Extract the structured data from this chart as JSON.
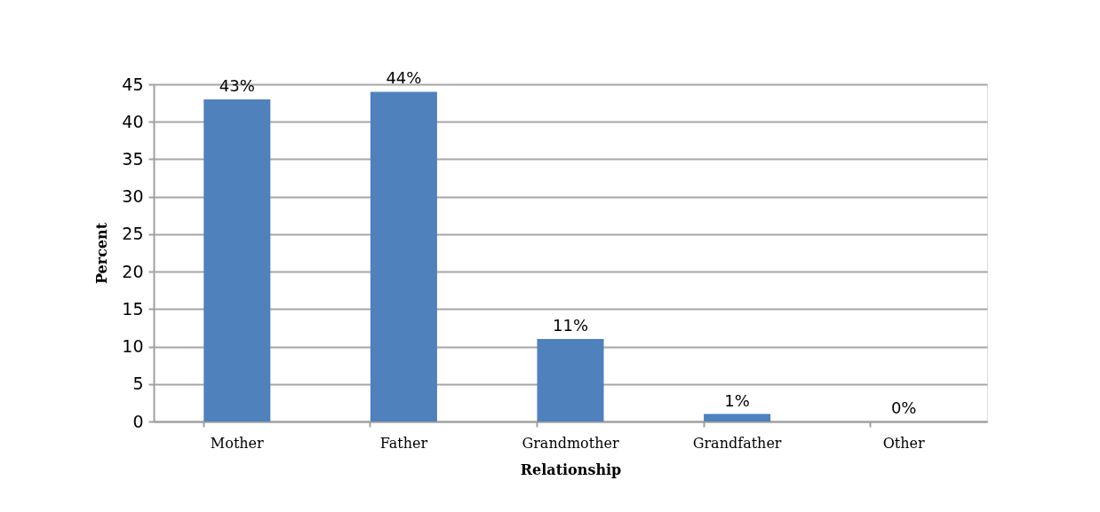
{
  "chart_data": {
    "type": "bar",
    "xlabel": "Relationship",
    "ylabel": "Percent",
    "categories": [
      "Mother",
      "Father",
      "Grandmother",
      "Grandfather",
      "Other"
    ],
    "values": [
      43,
      44,
      11,
      1,
      0
    ],
    "value_labels": [
      "43%",
      "44%",
      "11%",
      "1%",
      "0%"
    ],
    "color": "#4f81bd",
    "ylim": [
      0,
      45
    ],
    "yticks": [
      0,
      5,
      10,
      15,
      20,
      25,
      30,
      35,
      40,
      45
    ],
    "grid": "y"
  }
}
